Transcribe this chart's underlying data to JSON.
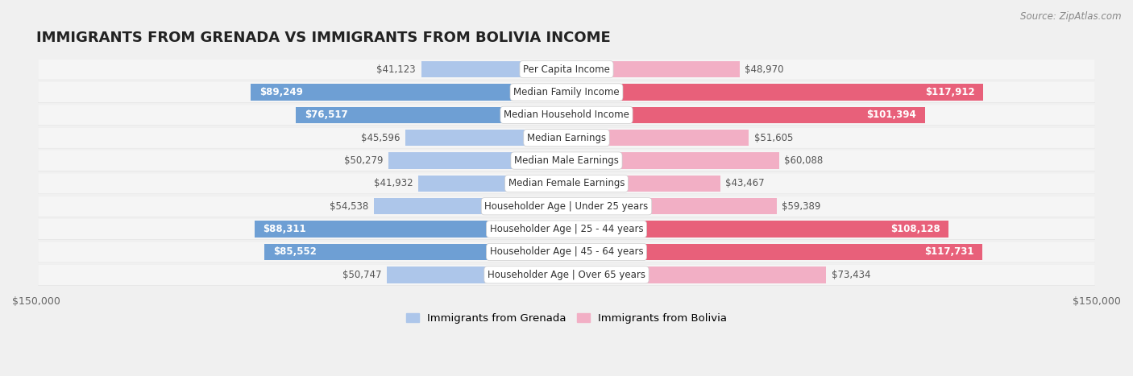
{
  "title": "IMMIGRANTS FROM GRENADA VS IMMIGRANTS FROM BOLIVIA INCOME",
  "source": "Source: ZipAtlas.com",
  "categories": [
    "Per Capita Income",
    "Median Family Income",
    "Median Household Income",
    "Median Earnings",
    "Median Male Earnings",
    "Median Female Earnings",
    "Householder Age | Under 25 years",
    "Householder Age | 25 - 44 years",
    "Householder Age | 45 - 64 years",
    "Householder Age | Over 65 years"
  ],
  "grenada_values": [
    41123,
    89249,
    76517,
    45596,
    50279,
    41932,
    54538,
    88311,
    85552,
    50747
  ],
  "bolivia_values": [
    48970,
    117912,
    101394,
    51605,
    60088,
    43467,
    59389,
    108128,
    117731,
    73434
  ],
  "grenada_labels": [
    "$41,123",
    "$89,249",
    "$76,517",
    "$45,596",
    "$50,279",
    "$41,932",
    "$54,538",
    "$88,311",
    "$85,552",
    "$50,747"
  ],
  "bolivia_labels": [
    "$48,970",
    "$117,912",
    "$101,394",
    "$51,605",
    "$60,088",
    "$43,467",
    "$59,389",
    "$108,128",
    "$117,731",
    "$73,434"
  ],
  "grenada_color_light": "#adc6ea",
  "grenada_color_dark": "#6e9fd4",
  "bolivia_color_light": "#f2afc5",
  "bolivia_color_dark": "#e8607a",
  "grenada_threshold": 65000,
  "bolivia_threshold": 85000,
  "max_value": 150000,
  "legend_grenada": "Immigrants from Grenada",
  "legend_bolivia": "Immigrants from Bolivia",
  "bg_color": "#f0f0f0",
  "row_bg_color": "#f5f5f5",
  "row_shadow_color": "#d8d8d8",
  "label_fontsize": 8.5,
  "category_fontsize": 8.5,
  "title_fontsize": 13,
  "source_fontsize": 8.5
}
